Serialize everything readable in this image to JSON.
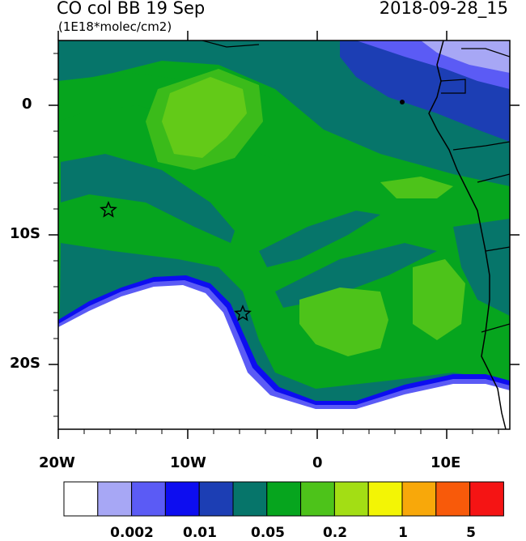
{
  "header": {
    "title": "CO col BB 19 Sep",
    "units": "(1E18*molec/cm2)",
    "timestamp": "2018-09-28_15"
  },
  "axes": {
    "x_labels": [
      "20W",
      "10W",
      "0",
      "10E"
    ],
    "y_labels": [
      "0",
      "10S",
      "20S"
    ]
  },
  "colorbar": {
    "colors": [
      "#ffffff",
      "#a7a7f5",
      "#5b5bf5",
      "#0d0df0",
      "#1c3eb4",
      "#06756a",
      "#06a51e",
      "#4dc31a",
      "#a3de14",
      "#f3f505",
      "#f8a80a",
      "#f85a0a",
      "#f51414"
    ],
    "labels": [
      "0.002",
      "0.01",
      "0.05",
      "0.2",
      "1",
      "5"
    ]
  },
  "map": {
    "markers": [
      "star",
      "star"
    ]
  }
}
